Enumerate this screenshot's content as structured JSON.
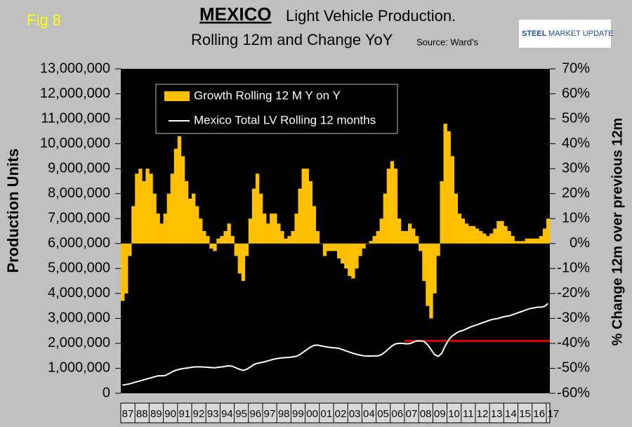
{
  "chart_data": {
    "type": "combo",
    "figure_label": "Fig 8",
    "title": "MEXICO",
    "title_rest": "Light Vehicle Production.",
    "subtitle": "Rolling 12m and Change YoY",
    "source": "Source: Ward's",
    "logo": {
      "bold": "STEEL",
      "rest": "MARKET UPDATE"
    },
    "y_label": "Production Units",
    "y2_label": "% Change 12m over previous 12m",
    "legend": true,
    "categories": [
      "87",
      null,
      null,
      null,
      "88",
      null,
      null,
      null,
      "89",
      null,
      null,
      null,
      "90",
      null,
      null,
      null,
      "91",
      null,
      null,
      null,
      "92",
      null,
      null,
      null,
      "93",
      null,
      null,
      null,
      "94",
      null,
      null,
      null,
      "95",
      null,
      null,
      null,
      "96",
      null,
      null,
      null,
      "97",
      null,
      null,
      null,
      "98",
      null,
      null,
      null,
      "99",
      null,
      null,
      null,
      "00",
      null,
      null,
      null,
      "01",
      null,
      null,
      null,
      "02",
      null,
      null,
      null,
      "03",
      null,
      null,
      null,
      "04",
      null,
      null,
      null,
      "05",
      null,
      null,
      null,
      "06",
      null,
      null,
      null,
      "07",
      null,
      null,
      null,
      "08",
      null,
      null,
      null,
      "09",
      null,
      null,
      null,
      "10",
      null,
      null,
      null,
      "11",
      null,
      null,
      null,
      "12",
      null,
      null,
      null,
      "13",
      null,
      null,
      null,
      "14",
      null,
      null,
      null,
      "15",
      null,
      null,
      null,
      "16",
      null,
      null,
      null,
      "17"
    ],
    "series": [
      {
        "name": "Growth Rolling 12 M Y on Y",
        "type": "bar",
        "axis": "y2",
        "color": "#ffc000",
        "values": [
          -23,
          -20,
          -5,
          15,
          28,
          30,
          25,
          30,
          28,
          20,
          12,
          8,
          12,
          20,
          28,
          38,
          43,
          35,
          25,
          18,
          20,
          15,
          10,
          5,
          3,
          -2,
          -3,
          2,
          3,
          5,
          8,
          3,
          -5,
          -12,
          -15,
          -5,
          10,
          22,
          28,
          20,
          12,
          8,
          12,
          12,
          8,
          5,
          2,
          3,
          5,
          12,
          22,
          30,
          30,
          25,
          15,
          5,
          0,
          -5,
          -3,
          -3,
          -3,
          -6,
          -8,
          -10,
          -13,
          -14,
          -10,
          -5,
          -2,
          0,
          1,
          3,
          5,
          10,
          20,
          30,
          33,
          30,
          10,
          5,
          5,
          8,
          6,
          3,
          -3,
          -15,
          -25,
          -30,
          -20,
          -5,
          25,
          48,
          45,
          35,
          20,
          12,
          10,
          8,
          7,
          7,
          6,
          5,
          4,
          3,
          4,
          6,
          9,
          9,
          7,
          5,
          3,
          1,
          1,
          1,
          2,
          2,
          2,
          2,
          3,
          6,
          10
        ]
      },
      {
        "name": "Mexico Total LV Rolling 12 months",
        "type": "line",
        "axis": "y",
        "color": "#ffffff",
        "values": [
          330000,
          350000,
          380000,
          420000,
          460000,
          500000,
          540000,
          580000,
          620000,
          660000,
          700000,
          700000,
          710000,
          780000,
          860000,
          920000,
          960000,
          990000,
          1010000,
          1030000,
          1050000,
          1060000,
          1060000,
          1050000,
          1040000,
          1030000,
          1020000,
          1040000,
          1060000,
          1080000,
          1100000,
          1080000,
          1020000,
          960000,
          920000,
          960000,
          1050000,
          1150000,
          1200000,
          1230000,
          1260000,
          1300000,
          1340000,
          1380000,
          1400000,
          1420000,
          1430000,
          1440000,
          1460000,
          1480000,
          1550000,
          1650000,
          1750000,
          1850000,
          1920000,
          1930000,
          1900000,
          1870000,
          1850000,
          1830000,
          1820000,
          1800000,
          1750000,
          1700000,
          1650000,
          1600000,
          1560000,
          1530000,
          1500000,
          1490000,
          1490000,
          1500000,
          1500000,
          1550000,
          1650000,
          1780000,
          1900000,
          1980000,
          2000000,
          2000000,
          1980000,
          1990000,
          2050000,
          2100000,
          2100000,
          2080000,
          1950000,
          1750000,
          1550000,
          1480000,
          1600000,
          1900000,
          2150000,
          2300000,
          2400000,
          2480000,
          2520000,
          2580000,
          2650000,
          2700000,
          2750000,
          2800000,
          2850000,
          2900000,
          2950000,
          2980000,
          3000000,
          3050000,
          3080000,
          3100000,
          3150000,
          3200000,
          3250000,
          3300000,
          3350000,
          3400000,
          3420000,
          3450000,
          3450000,
          3480000,
          3600000
        ]
      }
    ],
    "reference_line": {
      "value": 2100000,
      "color": "#e00000",
      "from": "07",
      "to": "17"
    },
    "ylim": [
      0,
      13000000
    ],
    "yticks": [
      0,
      {
        "value": 1000000,
        "label": "1,000,000"
      },
      {
        "value": 2000000,
        "label": "2,000,000"
      },
      {
        "value": 3000000,
        "label": "3,000,000"
      },
      {
        "value": 4000000,
        "label": "4,000,000"
      },
      {
        "value": 5000000,
        "label": "5,000,000"
      },
      {
        "value": 6000000,
        "label": "6,000,000"
      },
      {
        "value": 7000000,
        "label": "7,000,000"
      },
      {
        "value": 8000000,
        "label": "8,000,000"
      },
      {
        "value": 9000000,
        "label": "9,000,000"
      },
      {
        "value": 10000000,
        "label": "10,000,000"
      },
      {
        "value": 11000000,
        "label": "11,000,000"
      },
      {
        "value": 12000000,
        "label": "12,000,000"
      },
      {
        "value": 13000000,
        "label": "13,000,000"
      }
    ],
    "y2lim": [
      -60,
      70
    ],
    "y2ticks": [
      {
        "value": -60,
        "label": "-60%"
      },
      {
        "value": -50,
        "label": "-50%"
      },
      {
        "value": -40,
        "label": "-40%"
      },
      {
        "value": -30,
        "label": "-30%"
      },
      {
        "value": -20,
        "label": "-20%"
      },
      {
        "value": -10,
        "label": "-10%"
      },
      {
        "value": 0,
        "label": "0%"
      },
      {
        "value": 10,
        "label": "10%"
      },
      {
        "value": 20,
        "label": "20%"
      },
      {
        "value": 30,
        "label": "30%"
      },
      {
        "value": 40,
        "label": "40%"
      },
      {
        "value": 50,
        "label": "50%"
      },
      {
        "value": 60,
        "label": "60%"
      },
      {
        "value": 70,
        "label": "70%"
      }
    ]
  }
}
